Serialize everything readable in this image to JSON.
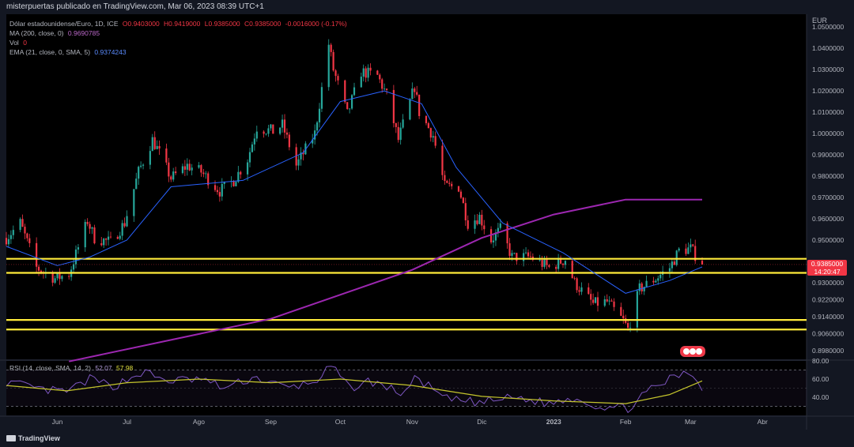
{
  "header": {
    "text": "misterpuertas publicado en TradingView.com, Mar 06, 2023 08:39 UTC+1"
  },
  "legend": {
    "symbol": "Dólar estadounidense/Euro, 1D, ICE",
    "ohlc": {
      "o": "O0.9403000",
      "h": "H0.9419000",
      "l": "L0.9385000",
      "c": "C0.9385000",
      "chg": "-0.0016000 (-0.17%)"
    },
    "ma_label": "MA (200, close, 0)",
    "ma_value": "0.9690785",
    "vol_label": "Vol",
    "vol_value": "0",
    "ema_label": "EMA (21, close, 0, SMA, 5)",
    "ema_value": "0.9374243"
  },
  "rsi_legend": {
    "label": "RSI (14, close, SMA, 14, 2)",
    "rsi_value": "52.07",
    "sma_value": "57.98"
  },
  "price_tag": {
    "price": "0.9385000",
    "countdown": "14:20:47"
  },
  "footer": {
    "brand": "TradingView"
  },
  "colors": {
    "up": "#26a69a",
    "down": "#f23645",
    "ma": "#9c27b0",
    "ema": "#2962ff",
    "hline": "#ffeb3b",
    "rsi": "#7e57c2",
    "rsi_ma": "#c5c52c"
  },
  "chart_data": [
    {
      "type": "candlestick",
      "currency": "EUR",
      "ylim": [
        0.894,
        1.056
      ],
      "y_ticks": [
        "1.0500000",
        "1.0400000",
        "1.0300000",
        "1.0200000",
        "1.0100000",
        "1.0000000",
        "0.9900000",
        "0.9800000",
        "0.9700000",
        "0.9600000",
        "0.9500000",
        "0.9300000",
        "0.9220000",
        "0.9140000",
        "0.9060000",
        "0.8980000"
      ],
      "x_ticks": [
        "Jun",
        "Jul",
        "Ago",
        "Sep",
        "Oct",
        "Nov",
        "Dic",
        "2023",
        "Feb",
        "Mar",
        "Abr"
      ],
      "x_range": [
        "2022-05-10",
        "2023-04-20"
      ],
      "last": {
        "date": "2023-03-06",
        "o": 0.9403,
        "h": 0.9419,
        "l": 0.9385,
        "c": 0.9385
      },
      "close_path": [
        [
          "2022-05-10",
          0.951
        ],
        [
          "2022-05-16",
          0.958
        ],
        [
          "2022-05-23",
          0.937
        ],
        [
          "2022-05-31",
          0.932
        ],
        [
          "2022-06-06",
          0.934
        ],
        [
          "2022-06-14",
          0.959
        ],
        [
          "2022-06-17",
          0.951
        ],
        [
          "2022-06-24",
          0.949
        ],
        [
          "2022-06-30",
          0.958
        ],
        [
          "2022-07-06",
          0.982
        ],
        [
          "2022-07-12",
          0.997
        ],
        [
          "2022-07-14",
          0.993
        ],
        [
          "2022-07-20",
          0.979
        ],
        [
          "2022-07-27",
          0.985
        ],
        [
          "2022-08-02",
          0.982
        ],
        [
          "2022-08-10",
          0.973
        ],
        [
          "2022-08-16",
          0.978
        ],
        [
          "2022-08-22",
          0.988
        ],
        [
          "2022-08-26",
          1.003
        ],
        [
          "2022-09-02",
          1.001
        ],
        [
          "2022-09-06",
          1.004
        ],
        [
          "2022-09-12",
          0.985
        ],
        [
          "2022-09-20",
          1.0
        ],
        [
          "2022-09-26",
          1.042
        ],
        [
          "2022-09-28",
          1.03
        ],
        [
          "2022-10-04",
          1.009
        ],
        [
          "2022-10-10",
          1.029
        ],
        [
          "2022-10-17",
          1.027
        ],
        [
          "2022-10-21",
          1.018
        ],
        [
          "2022-10-26",
          0.997
        ],
        [
          "2022-11-02",
          1.022
        ],
        [
          "2022-11-04",
          1.01
        ],
        [
          "2022-11-10",
          0.999
        ],
        [
          "2022-11-15",
          0.975
        ],
        [
          "2022-11-21",
          0.975
        ],
        [
          "2022-11-25",
          0.958
        ],
        [
          "2022-11-30",
          0.961
        ],
        [
          "2022-12-05",
          0.95
        ],
        [
          "2022-12-09",
          0.955
        ],
        [
          "2022-12-14",
          0.942
        ],
        [
          "2022-12-22",
          0.942
        ],
        [
          "2022-12-30",
          0.937
        ],
        [
          "2023-01-06",
          0.941
        ],
        [
          "2023-01-10",
          0.93
        ],
        [
          "2023-01-18",
          0.92
        ],
        [
          "2023-01-24",
          0.921
        ],
        [
          "2023-01-31",
          0.912
        ],
        [
          "2023-02-02",
          0.908
        ],
        [
          "2023-02-07",
          0.927
        ],
        [
          "2023-02-14",
          0.932
        ],
        [
          "2023-02-20",
          0.937
        ],
        [
          "2023-02-24",
          0.945
        ],
        [
          "2023-03-01",
          0.946
        ],
        [
          "2023-03-06",
          0.9385
        ]
      ],
      "ma200": [
        [
          "2022-06-06",
          0.893
        ],
        [
          "2022-09-01",
          0.913
        ],
        [
          "2022-11-01",
          0.936
        ],
        [
          "2022-12-01",
          0.951
        ],
        [
          "2023-01-01",
          0.962
        ],
        [
          "2023-02-01",
          0.969
        ],
        [
          "2023-03-06",
          0.969
        ]
      ],
      "ema21": [
        [
          "2022-05-10",
          0.947
        ],
        [
          "2022-06-01",
          0.938
        ],
        [
          "2022-06-15",
          0.942
        ],
        [
          "2022-07-01",
          0.95
        ],
        [
          "2022-07-20",
          0.975
        ],
        [
          "2022-08-20",
          0.978
        ],
        [
          "2022-09-15",
          0.991
        ],
        [
          "2022-10-01",
          1.015
        ],
        [
          "2022-10-20",
          1.02
        ],
        [
          "2022-11-05",
          1.014
        ],
        [
          "2022-11-20",
          0.984
        ],
        [
          "2022-12-10",
          0.958
        ],
        [
          "2023-01-05",
          0.944
        ],
        [
          "2023-02-01",
          0.925
        ],
        [
          "2023-02-20",
          0.931
        ],
        [
          "2023-03-06",
          0.9374
        ]
      ],
      "horizontal_levels": [
        0.9412,
        0.9346,
        0.9125,
        0.908
      ]
    },
    {
      "type": "line",
      "name": "RSI",
      "ylim": [
        20,
        80
      ],
      "y_ticks": [
        "80.00",
        "60.00",
        "40.00"
      ],
      "bands": [
        30,
        70
      ],
      "rsi": [
        [
          "2022-05-10",
          57
        ],
        [
          "2022-05-25",
          48
        ],
        [
          "2022-06-05",
          46
        ],
        [
          "2022-06-15",
          60
        ],
        [
          "2022-06-25",
          52
        ],
        [
          "2022-07-08",
          68
        ],
        [
          "2022-07-18",
          58
        ],
        [
          "2022-08-02",
          60
        ],
        [
          "2022-08-12",
          50
        ],
        [
          "2022-08-25",
          62
        ],
        [
          "2022-09-08",
          50
        ],
        [
          "2022-09-20",
          57
        ],
        [
          "2022-09-27",
          74
        ],
        [
          "2022-10-05",
          50
        ],
        [
          "2022-10-14",
          58
        ],
        [
          "2022-10-28",
          44
        ],
        [
          "2022-11-03",
          62
        ],
        [
          "2022-11-15",
          38
        ],
        [
          "2022-11-30",
          34
        ],
        [
          "2022-12-15",
          40
        ],
        [
          "2022-12-30",
          33
        ],
        [
          "2023-01-10",
          40
        ],
        [
          "2023-01-20",
          30
        ],
        [
          "2023-02-02",
          28
        ],
        [
          "2023-02-10",
          45
        ],
        [
          "2023-02-20",
          60
        ],
        [
          "2023-03-01",
          68
        ],
        [
          "2023-03-06",
          52
        ]
      ],
      "rsi_sma": [
        [
          "2022-05-10",
          53
        ],
        [
          "2022-06-05",
          47
        ],
        [
          "2022-07-01",
          56
        ],
        [
          "2022-08-01",
          60
        ],
        [
          "2022-09-01",
          56
        ],
        [
          "2022-10-01",
          60
        ],
        [
          "2022-11-01",
          53
        ],
        [
          "2022-12-01",
          41
        ],
        [
          "2023-01-01",
          36
        ],
        [
          "2023-02-01",
          33
        ],
        [
          "2023-02-20",
          43
        ],
        [
          "2023-03-06",
          57.98
        ]
      ]
    }
  ]
}
